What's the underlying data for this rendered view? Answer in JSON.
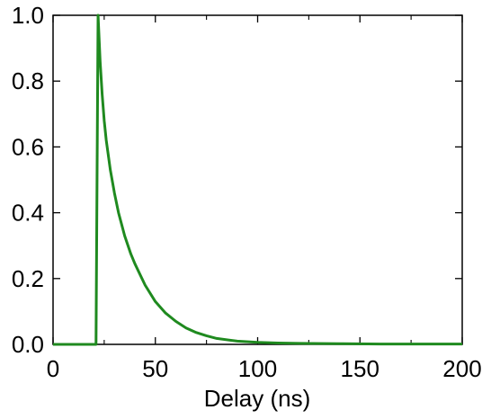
{
  "chart_data": {
    "type": "line",
    "title": "",
    "xlabel": "Delay (ns)",
    "ylabel": "",
    "xlim": [
      0,
      200
    ],
    "ylim": [
      0,
      1.0
    ],
    "xticks": [
      0,
      50,
      100,
      150,
      200
    ],
    "xtick_labels": [
      "0",
      "50",
      "100",
      "150",
      "200"
    ],
    "yticks": [
      0.0,
      0.2,
      0.4,
      0.6,
      0.8,
      1.0
    ],
    "ytick_labels": [
      "0.0",
      "0.2",
      "0.4",
      "0.6",
      "0.8",
      "1.0"
    ],
    "grid": false,
    "legend": "none",
    "series": [
      {
        "color": "#1f8a1f",
        "x": [
          0,
          10,
          20,
          21,
          21.5,
          22,
          23,
          24,
          25,
          26,
          28,
          30,
          32,
          35,
          38,
          40,
          45,
          50,
          55,
          60,
          65,
          70,
          75,
          80,
          90,
          100,
          110,
          120,
          140,
          160,
          180,
          200
        ],
        "y": [
          0.0,
          0.0,
          0.0,
          0.0,
          0.5,
          1.0,
          0.86,
          0.76,
          0.68,
          0.62,
          0.53,
          0.46,
          0.4,
          0.33,
          0.275,
          0.245,
          0.18,
          0.13,
          0.095,
          0.07,
          0.05,
          0.036,
          0.026,
          0.018,
          0.01,
          0.006,
          0.004,
          0.003,
          0.002,
          0.001,
          0.001,
          0.001
        ]
      }
    ]
  }
}
